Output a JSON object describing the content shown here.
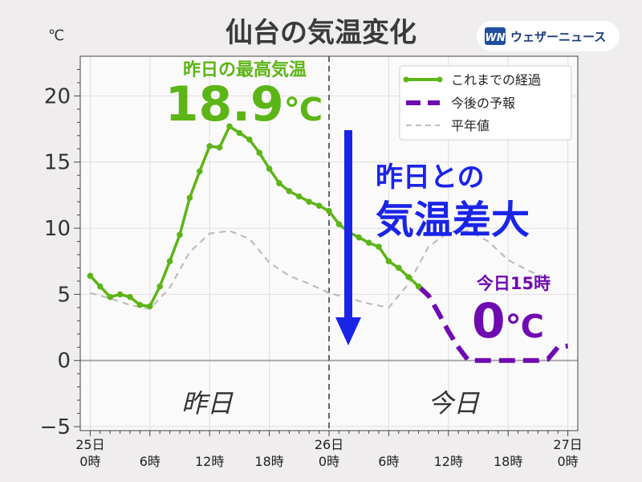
{
  "title": "仙台の気温変化",
  "unit": "℃",
  "logo": {
    "mark": "WN",
    "text": "ウェザーニュース",
    "color": "#1f4e9e"
  },
  "colors": {
    "observed": "#5cb516",
    "forecast": "#6f0bb0",
    "normal": "#bdbdbd",
    "arrow": "#1a24e8",
    "annotation_blue": "#1a24e8",
    "plot_bg": "#fbfafb"
  },
  "annotations": {
    "max_label": "昨日の最高気温",
    "max_value": "18.9",
    "max_unit": "℃",
    "diff_line1": "昨日との",
    "diff_line2": "気温差大",
    "forecast_label": "今日15時",
    "forecast_value": "0",
    "forecast_unit": "℃",
    "yesterday": "昨日",
    "today": "今日"
  },
  "chart_data": {
    "type": "line",
    "title": "仙台の気温変化",
    "ylabel": "℃",
    "xlim": [
      -1,
      49
    ],
    "ylim": [
      -5.3,
      23
    ],
    "y_ticks": [
      -5,
      0,
      5,
      10,
      15,
      20
    ],
    "y_tick_labels": [
      "−5",
      "0",
      "5",
      "10",
      "15",
      "20"
    ],
    "x_ticks": [
      {
        "x": 0,
        "line1": "25日",
        "line2": "0時"
      },
      {
        "x": 6,
        "line1": "",
        "line2": "6時"
      },
      {
        "x": 12,
        "line1": "",
        "line2": "12時"
      },
      {
        "x": 18,
        "line1": "",
        "line2": "18時"
      },
      {
        "x": 24,
        "line1": "26日",
        "line2": "0時"
      },
      {
        "x": 30,
        "line1": "",
        "line2": "6時"
      },
      {
        "x": 36,
        "line1": "",
        "line2": "12時"
      },
      {
        "x": 42,
        "line1": "",
        "line2": "18時"
      },
      {
        "x": 48,
        "line1": "27日",
        "line2": "0時"
      }
    ],
    "grid": true,
    "divider_x": 24,
    "legend_position": "top-right",
    "series": [
      {
        "name": "これまでの経過",
        "style": "solid-markers",
        "x": [
          0,
          1,
          2,
          3,
          4,
          5,
          6,
          7,
          8,
          9,
          10,
          11,
          12,
          13,
          14,
          15,
          16,
          17,
          18,
          19,
          20,
          21,
          22,
          23,
          24,
          25,
          26,
          27,
          28,
          29,
          30,
          31,
          32,
          33
        ],
        "y": [
          6.4,
          5.6,
          4.8,
          5.0,
          4.8,
          4.2,
          4.1,
          5.6,
          7.5,
          9.5,
          12.3,
          14.3,
          16.2,
          16.1,
          17.7,
          17.2,
          16.7,
          15.7,
          14.5,
          13.4,
          12.8,
          12.4,
          12.0,
          11.7,
          11.3,
          10.3,
          9.7,
          9.3,
          8.9,
          8.6,
          7.5,
          7.0,
          6.3,
          5.6
        ]
      },
      {
        "name": "今後の予報",
        "style": "dashed-thick",
        "x": [
          33,
          34,
          35,
          36,
          37,
          38,
          39,
          40,
          41,
          42,
          43,
          44,
          45,
          46,
          47,
          48
        ],
        "y": [
          5.6,
          4.9,
          3.6,
          2.2,
          1.0,
          0.0,
          0.0,
          0.0,
          0.0,
          0.0,
          0.0,
          0.0,
          0.0,
          0.1,
          1.0,
          1.1
        ]
      },
      {
        "name": "平年値",
        "style": "dashed-thin",
        "x": [
          0,
          2,
          4,
          6,
          8,
          10,
          12,
          14,
          16,
          18,
          20,
          22,
          24,
          26,
          28,
          30,
          32,
          34,
          36,
          38,
          40,
          42,
          44,
          46
        ],
        "y": [
          5.1,
          4.7,
          4.2,
          3.9,
          5.5,
          8.2,
          9.6,
          9.8,
          9.2,
          7.4,
          6.4,
          5.8,
          5.1,
          4.7,
          4.3,
          4.0,
          5.8,
          8.6,
          9.7,
          9.8,
          9.0,
          7.6,
          6.8,
          6.2
        ]
      }
    ]
  }
}
